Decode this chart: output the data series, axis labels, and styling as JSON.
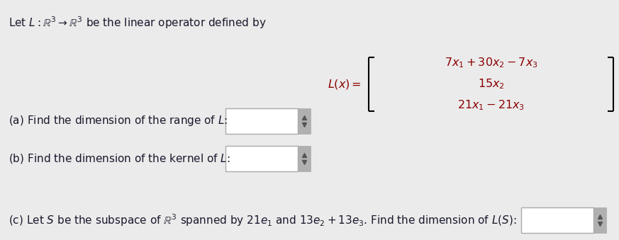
{
  "bg_color": "#ebebeb",
  "text_color": "#1a1a2e",
  "math_color": "#8B0000",
  "title_text": "Let $L : \\mathbb{R}^3 \\to \\mathbb{R}^3$ be the linear operator defined by",
  "lx_label": "$L(x) =$",
  "matrix_row1": "$7x_1 + 30x_2 - 7x_3$",
  "matrix_row2": "$15x_2$",
  "matrix_row3": "$21x_1 - 21x_3$",
  "part_a": "(a) Find the dimension of the range of $L$:",
  "part_b": "(b) Find the dimension of the kernel of $L$:",
  "part_c": "(c) Let $S$ be the subspace of $\\mathbb{R}^3$ spanned by $21e_1$ and $13e_2 + 13e_3$. Find the dimension of $L(S)$:",
  "box_color": "#ffffff",
  "box_border": "#aaaaaa",
  "scroll_color": "#b0b0b0",
  "title_fontsize": 11,
  "math_fontsize": 11.5,
  "body_fontsize": 11
}
